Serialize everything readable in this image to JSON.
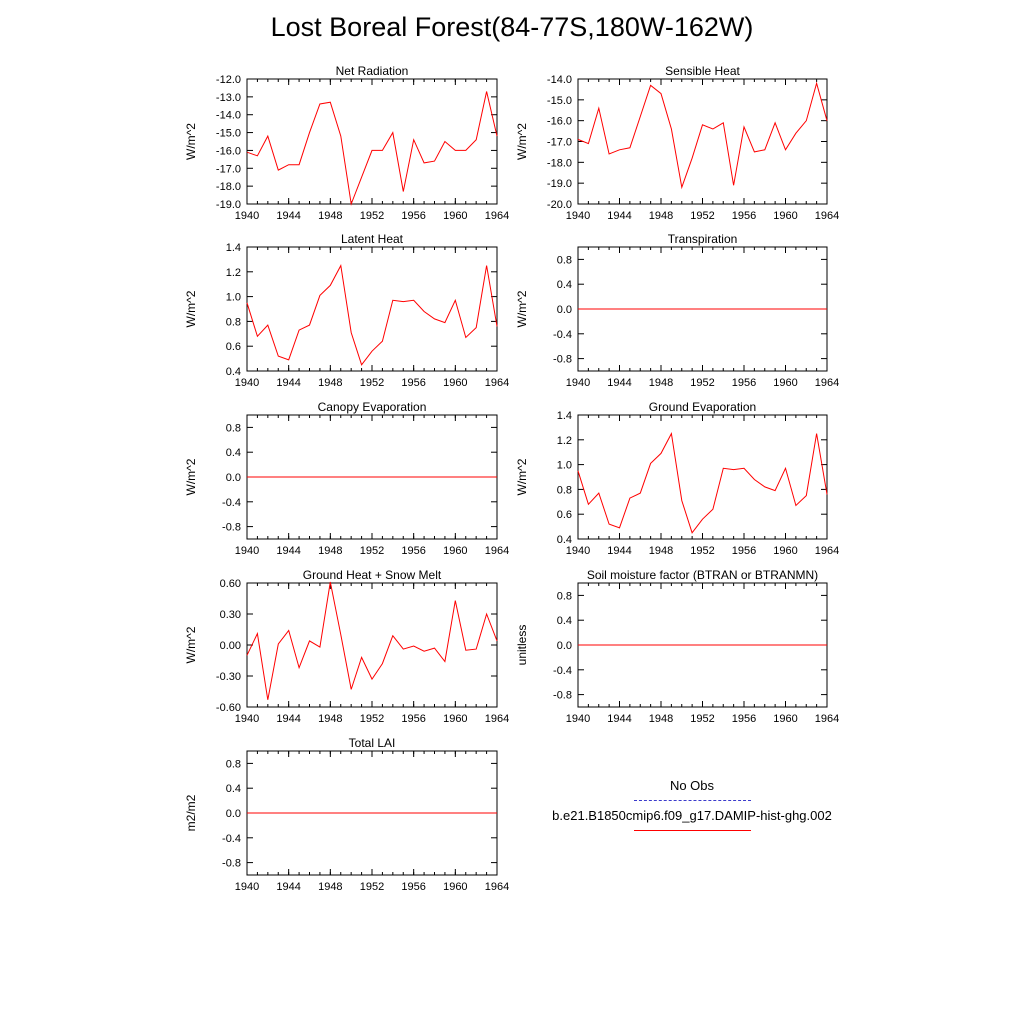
{
  "title": "Lost Boreal Forest(84-77S,180W-162W)",
  "colors": {
    "series": "#ff0000",
    "obs": "#3a3acc",
    "axis": "#000000"
  },
  "legend": {
    "entries": [
      {
        "name": "No Obs",
        "color": "#3a3acc",
        "style": "dashed"
      },
      {
        "name": "b.e21.B1850cmip6.f09_g17.DAMIP-hist-ghg.002",
        "color": "#ff0000",
        "style": "solid"
      }
    ]
  },
  "chart_data": [
    {
      "type": "line",
      "title": "Net Radiation",
      "ylabel": "W/m^2",
      "xlim": [
        1940,
        1964
      ],
      "ylim": [
        -19,
        -12
      ],
      "xticks": [
        1940,
        1944,
        1948,
        1952,
        1956,
        1960,
        1964
      ],
      "yticks": [
        -19,
        -18,
        -17,
        -16,
        -15,
        -14,
        -13,
        -12
      ],
      "ytick_labels": [
        "-19.0",
        "-18.0",
        "-17.0",
        "-16.0",
        "-15.0",
        "-14.0",
        "-13.0",
        "-12.0"
      ],
      "x": [
        1940,
        1941,
        1942,
        1943,
        1944,
        1945,
        1946,
        1947,
        1948,
        1949,
        1950,
        1951,
        1952,
        1953,
        1954,
        1955,
        1956,
        1957,
        1958,
        1959,
        1960,
        1961,
        1962,
        1963,
        1964
      ],
      "series": [
        {
          "values": [
            -16.1,
            -16.3,
            -15.2,
            -17.1,
            -16.8,
            -16.8,
            -15.0,
            -13.4,
            -13.3,
            -15.2,
            -19.0,
            -17.5,
            -16.0,
            -16.0,
            -15.0,
            -18.3,
            -15.4,
            -16.7,
            -16.6,
            -15.5,
            -16.0,
            -16.0,
            -15.4,
            -12.7,
            -15.2
          ]
        }
      ]
    },
    {
      "type": "line",
      "title": "Sensible Heat",
      "ylabel": "W/m^2",
      "xlim": [
        1940,
        1964
      ],
      "ylim": [
        -20,
        -14
      ],
      "xticks": [
        1940,
        1944,
        1948,
        1952,
        1956,
        1960,
        1964
      ],
      "yticks": [
        -20,
        -19,
        -18,
        -17,
        -16,
        -15,
        -14
      ],
      "ytick_labels": [
        "-20.0",
        "-19.0",
        "-18.0",
        "-17.0",
        "-16.0",
        "-15.0",
        "-14.0"
      ],
      "x": [
        1940,
        1941,
        1942,
        1943,
        1944,
        1945,
        1946,
        1947,
        1948,
        1949,
        1950,
        1951,
        1952,
        1953,
        1954,
        1955,
        1956,
        1957,
        1958,
        1959,
        1960,
        1961,
        1962,
        1963,
        1964
      ],
      "series": [
        {
          "values": [
            -16.9,
            -17.1,
            -15.4,
            -17.6,
            -17.4,
            -17.3,
            -15.8,
            -14.3,
            -14.7,
            -16.4,
            -19.2,
            -17.8,
            -16.2,
            -16.4,
            -16.1,
            -19.1,
            -16.3,
            -17.5,
            -17.4,
            -16.1,
            -17.4,
            -16.6,
            -16.0,
            -14.2,
            -16.0
          ]
        }
      ]
    },
    {
      "type": "line",
      "title": "Latent Heat",
      "ylabel": "W/m^2",
      "xlim": [
        1940,
        1964
      ],
      "ylim": [
        0.4,
        1.4
      ],
      "xticks": [
        1940,
        1944,
        1948,
        1952,
        1956,
        1960,
        1964
      ],
      "yticks": [
        0.4,
        0.6,
        0.8,
        1.0,
        1.2,
        1.4
      ],
      "ytick_labels": [
        "0.4",
        "0.6",
        "0.8",
        "1.0",
        "1.2",
        "1.4"
      ],
      "x": [
        1940,
        1941,
        1942,
        1943,
        1944,
        1945,
        1946,
        1947,
        1948,
        1949,
        1950,
        1951,
        1952,
        1953,
        1954,
        1955,
        1956,
        1957,
        1958,
        1959,
        1960,
        1961,
        1962,
        1963,
        1964
      ],
      "series": [
        {
          "values": [
            0.95,
            0.68,
            0.77,
            0.52,
            0.49,
            0.73,
            0.77,
            1.01,
            1.09,
            1.25,
            0.71,
            0.45,
            0.56,
            0.64,
            0.97,
            0.96,
            0.97,
            0.88,
            0.82,
            0.79,
            0.97,
            0.67,
            0.75,
            1.25,
            0.76
          ]
        }
      ]
    },
    {
      "type": "line",
      "title": "Transpiration",
      "ylabel": "W/m^2",
      "xlim": [
        1940,
        1964
      ],
      "ylim": [
        -1,
        1
      ],
      "xticks": [
        1940,
        1944,
        1948,
        1952,
        1956,
        1960,
        1964
      ],
      "yticks": [
        -0.8,
        -0.4,
        0.0,
        0.4,
        0.8
      ],
      "ytick_labels": [
        "-0.8",
        "-0.4",
        "0.0",
        "0.4",
        "0.8"
      ],
      "x": [
        1940,
        1941,
        1942,
        1943,
        1944,
        1945,
        1946,
        1947,
        1948,
        1949,
        1950,
        1951,
        1952,
        1953,
        1954,
        1955,
        1956,
        1957,
        1958,
        1959,
        1960,
        1961,
        1962,
        1963,
        1964
      ],
      "series": [
        {
          "values": [
            0,
            0,
            0,
            0,
            0,
            0,
            0,
            0,
            0,
            0,
            0,
            0,
            0,
            0,
            0,
            0,
            0,
            0,
            0,
            0,
            0,
            0,
            0,
            0,
            0
          ]
        }
      ]
    },
    {
      "type": "line",
      "title": "Canopy Evaporation",
      "ylabel": "W/m^2",
      "xlim": [
        1940,
        1964
      ],
      "ylim": [
        -1,
        1
      ],
      "xticks": [
        1940,
        1944,
        1948,
        1952,
        1956,
        1960,
        1964
      ],
      "yticks": [
        -0.8,
        -0.4,
        0.0,
        0.4,
        0.8
      ],
      "ytick_labels": [
        "-0.8",
        "-0.4",
        "0.0",
        "0.4",
        "0.8"
      ],
      "x": [
        1940,
        1941,
        1942,
        1943,
        1944,
        1945,
        1946,
        1947,
        1948,
        1949,
        1950,
        1951,
        1952,
        1953,
        1954,
        1955,
        1956,
        1957,
        1958,
        1959,
        1960,
        1961,
        1962,
        1963,
        1964
      ],
      "series": [
        {
          "values": [
            0,
            0,
            0,
            0,
            0,
            0,
            0,
            0,
            0,
            0,
            0,
            0,
            0,
            0,
            0,
            0,
            0,
            0,
            0,
            0,
            0,
            0,
            0,
            0,
            0
          ]
        }
      ]
    },
    {
      "type": "line",
      "title": "Ground Evaporation",
      "ylabel": "W/m^2",
      "xlim": [
        1940,
        1964
      ],
      "ylim": [
        0.4,
        1.4
      ],
      "xticks": [
        1940,
        1944,
        1948,
        1952,
        1956,
        1960,
        1964
      ],
      "yticks": [
        0.4,
        0.6,
        0.8,
        1.0,
        1.2,
        1.4
      ],
      "ytick_labels": [
        "0.4",
        "0.6",
        "0.8",
        "1.0",
        "1.2",
        "1.4"
      ],
      "x": [
        1940,
        1941,
        1942,
        1943,
        1944,
        1945,
        1946,
        1947,
        1948,
        1949,
        1950,
        1951,
        1952,
        1953,
        1954,
        1955,
        1956,
        1957,
        1958,
        1959,
        1960,
        1961,
        1962,
        1963,
        1964
      ],
      "series": [
        {
          "values": [
            0.95,
            0.68,
            0.77,
            0.52,
            0.49,
            0.73,
            0.77,
            1.01,
            1.09,
            1.25,
            0.71,
            0.45,
            0.56,
            0.64,
            0.97,
            0.96,
            0.97,
            0.88,
            0.82,
            0.79,
            0.97,
            0.67,
            0.75,
            1.25,
            0.76
          ]
        }
      ]
    },
    {
      "type": "line",
      "title": "Ground Heat + Snow Melt",
      "ylabel": "W/m^2",
      "xlim": [
        1940,
        1964
      ],
      "ylim": [
        -0.6,
        0.6
      ],
      "xticks": [
        1940,
        1944,
        1948,
        1952,
        1956,
        1960,
        1964
      ],
      "yticks": [
        -0.6,
        -0.3,
        0.0,
        0.3,
        0.6
      ],
      "ytick_labels": [
        "-0.60",
        "-0.30",
        "0.00",
        "0.30",
        "0.60"
      ],
      "x": [
        1940,
        1941,
        1942,
        1943,
        1944,
        1945,
        1946,
        1947,
        1948,
        1949,
        1950,
        1951,
        1952,
        1953,
        1954,
        1955,
        1956,
        1957,
        1958,
        1959,
        1960,
        1961,
        1962,
        1963,
        1964
      ],
      "series": [
        {
          "values": [
            -0.1,
            0.11,
            -0.53,
            0.01,
            0.14,
            -0.22,
            0.04,
            -0.02,
            0.61,
            0.1,
            -0.43,
            -0.12,
            -0.33,
            -0.18,
            0.09,
            -0.04,
            -0.01,
            -0.06,
            -0.03,
            -0.16,
            0.43,
            -0.05,
            -0.04,
            0.3,
            0.04
          ]
        }
      ]
    },
    {
      "type": "line",
      "title": "Soil moisture factor (BTRAN or BTRANMN)",
      "ylabel": "unitless",
      "xlim": [
        1940,
        1964
      ],
      "ylim": [
        -1,
        1
      ],
      "xticks": [
        1940,
        1944,
        1948,
        1952,
        1956,
        1960,
        1964
      ],
      "yticks": [
        -0.8,
        -0.4,
        0.0,
        0.4,
        0.8
      ],
      "ytick_labels": [
        "-0.8",
        "-0.4",
        "0.0",
        "0.4",
        "0.8"
      ],
      "x": [
        1940,
        1941,
        1942,
        1943,
        1944,
        1945,
        1946,
        1947,
        1948,
        1949,
        1950,
        1951,
        1952,
        1953,
        1954,
        1955,
        1956,
        1957,
        1958,
        1959,
        1960,
        1961,
        1962,
        1963,
        1964
      ],
      "series": [
        {
          "values": [
            0,
            0,
            0,
            0,
            0,
            0,
            0,
            0,
            0,
            0,
            0,
            0,
            0,
            0,
            0,
            0,
            0,
            0,
            0,
            0,
            0,
            0,
            0,
            0,
            0
          ]
        }
      ]
    },
    {
      "type": "line",
      "title": "Total LAI",
      "ylabel": "m2/m2",
      "xlim": [
        1940,
        1964
      ],
      "ylim": [
        -1,
        1
      ],
      "xticks": [
        1940,
        1944,
        1948,
        1952,
        1956,
        1960,
        1964
      ],
      "yticks": [
        -0.8,
        -0.4,
        0.0,
        0.4,
        0.8
      ],
      "ytick_labels": [
        "-0.8",
        "-0.4",
        "0.0",
        "0.4",
        "0.8"
      ],
      "x": [
        1940,
        1941,
        1942,
        1943,
        1944,
        1945,
        1946,
        1947,
        1948,
        1949,
        1950,
        1951,
        1952,
        1953,
        1954,
        1955,
        1956,
        1957,
        1958,
        1959,
        1960,
        1961,
        1962,
        1963,
        1964
      ],
      "series": [
        {
          "values": [
            0,
            0,
            0,
            0,
            0,
            0,
            0,
            0,
            0,
            0,
            0,
            0,
            0,
            0,
            0,
            0,
            0,
            0,
            0,
            0,
            0,
            0,
            0,
            0,
            0
          ]
        }
      ]
    }
  ]
}
